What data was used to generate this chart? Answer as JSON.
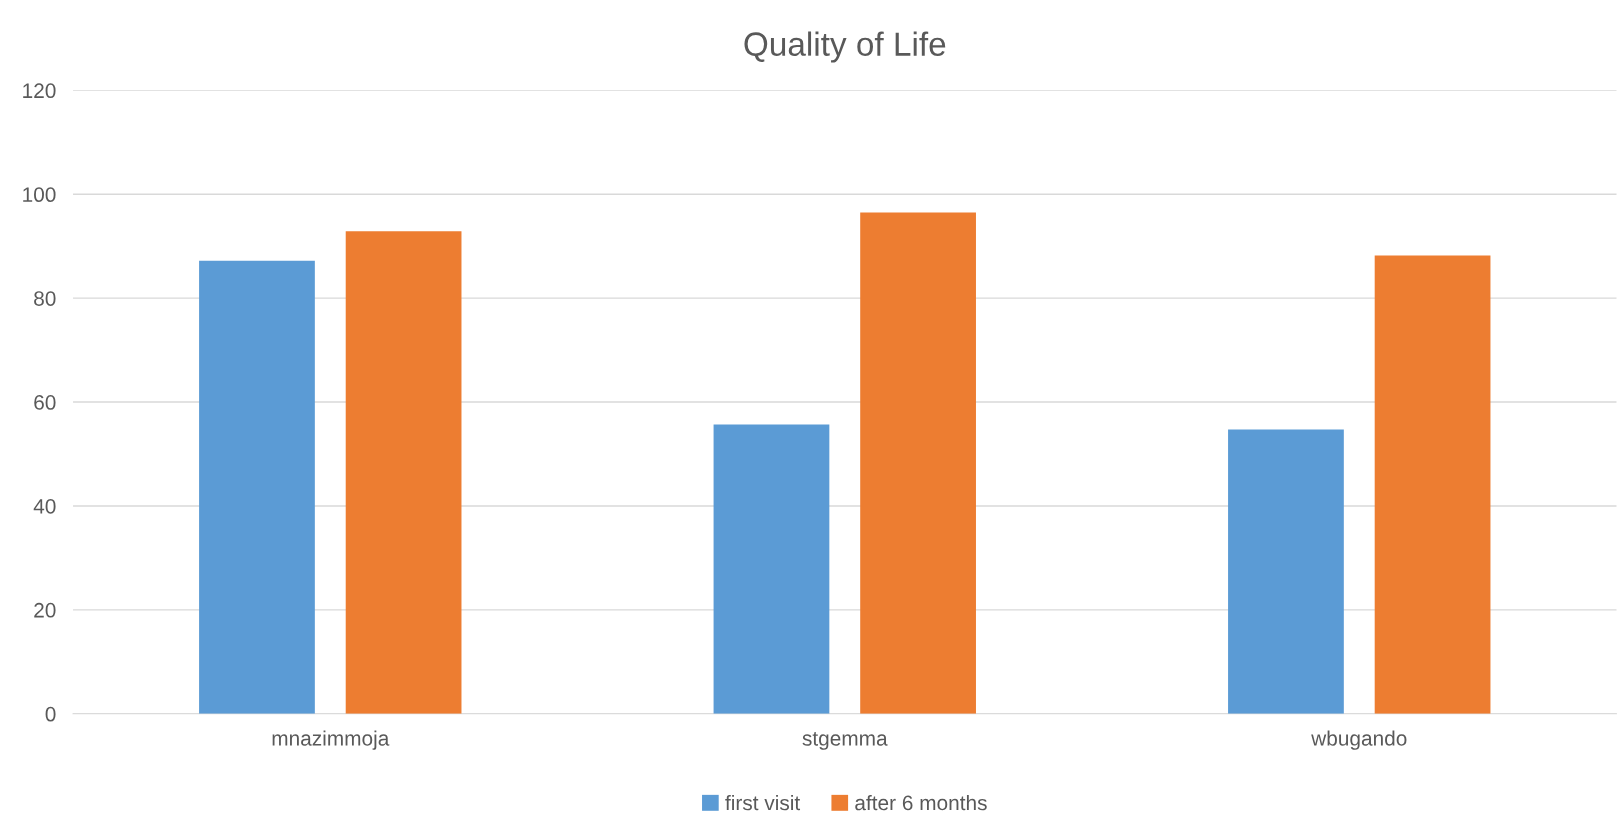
{
  "chart_data": {
    "type": "bar",
    "title": "Quality of Life",
    "categories": [
      "mnazimmoja",
      "stgemma",
      "wbugando"
    ],
    "series": [
      {
        "name": "first visit",
        "color": "#5b9bd5",
        "values": [
          87.2,
          55.7,
          54.7
        ]
      },
      {
        "name": "after 6 months",
        "color": "#ed7d31",
        "values": [
          92.9,
          96.5,
          88.2
        ]
      }
    ],
    "ylim": [
      0,
      120
    ],
    "yticks": [
      0,
      20,
      40,
      60,
      80,
      100,
      120
    ],
    "grid": "y",
    "legend": "bottom"
  }
}
